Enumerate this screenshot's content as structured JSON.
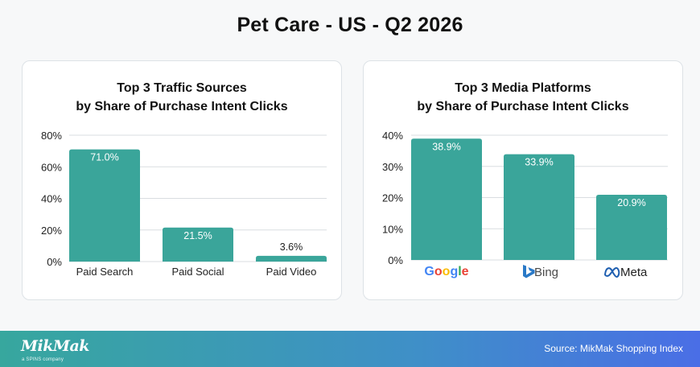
{
  "page": {
    "title": "Pet Care - US - Q2 2026"
  },
  "footer": {
    "logo": "MikMak",
    "logo_sub": "a SPINS company",
    "source": "Source: MikMak Shopping Index"
  },
  "colors": {
    "bar": "#3aa59a",
    "grid": "#d9dde1",
    "footer_start": "#37a79e",
    "footer_end": "#4a6ee6"
  },
  "chart_data": [
    {
      "type": "bar",
      "title": "Top 3 Traffic Sources\nby Share of Purchase Intent Clicks",
      "title_lines": [
        "Top 3 Traffic Sources",
        "by Share of Purchase Intent Clicks"
      ],
      "categories": [
        "Paid Search",
        "Paid Social",
        "Paid Video"
      ],
      "values": [
        71.0,
        21.5,
        3.6
      ],
      "value_labels": [
        "71.0%",
        "21.5%",
        "3.6%"
      ],
      "ylim": [
        0,
        80
      ],
      "yticks": [
        0,
        20,
        40,
        60,
        80
      ],
      "ytick_labels": [
        "0%",
        "20%",
        "40%",
        "60%",
        "80%"
      ],
      "grid": true,
      "xlabel": "",
      "ylabel": ""
    },
    {
      "type": "bar",
      "title": "Top 3 Media Platforms\nby Share of Purchase Intent Clicks",
      "title_lines": [
        "Top 3 Media Platforms",
        "by Share of Purchase Intent Clicks"
      ],
      "categories": [
        "Google",
        "Bing",
        "Meta"
      ],
      "category_icons": [
        "google-logo-icon",
        "bing-logo-icon",
        "meta-logo-icon"
      ],
      "values": [
        38.9,
        33.9,
        20.9
      ],
      "value_labels": [
        "38.9%",
        "33.9%",
        "20.9%"
      ],
      "ylim": [
        0,
        40
      ],
      "yticks": [
        0,
        10,
        20,
        30,
        40
      ],
      "ytick_labels": [
        "0%",
        "10%",
        "20%",
        "30%",
        "40%"
      ],
      "grid": true,
      "xlabel": "",
      "ylabel": ""
    }
  ]
}
